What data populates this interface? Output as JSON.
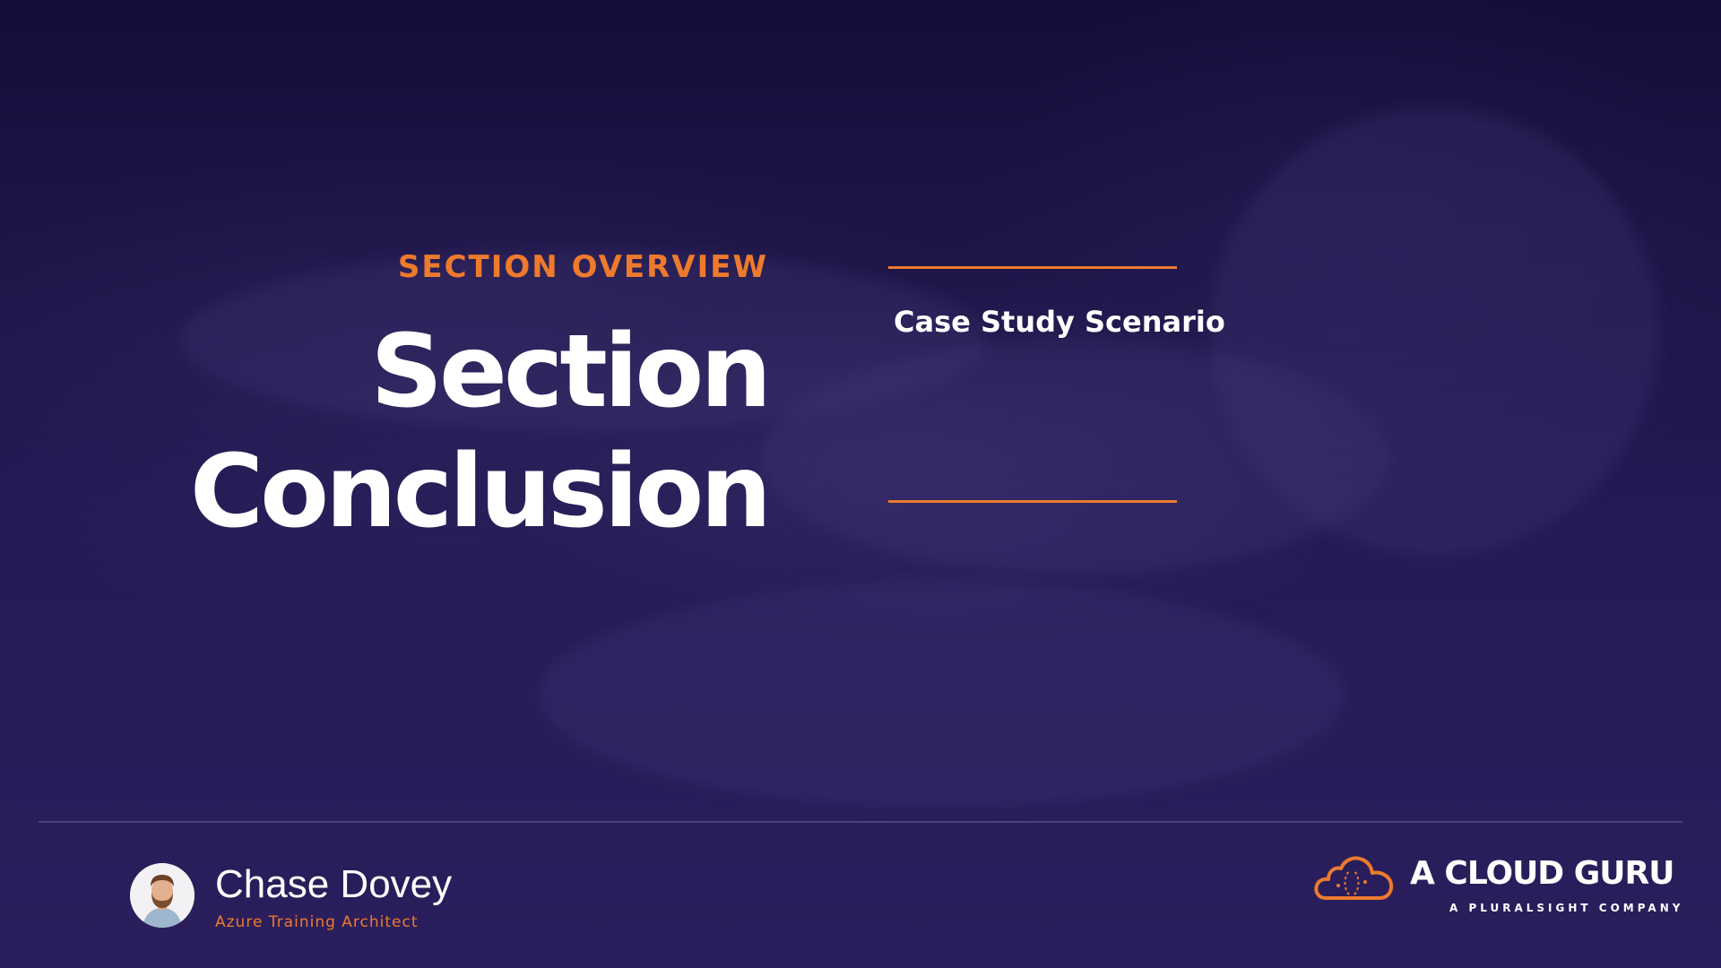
{
  "slide": {
    "section_label": "SECTION OVERVIEW",
    "title_line_1": "Section",
    "title_line_2": "Conclusion",
    "agenda_items": [
      "Case Study Scenario"
    ]
  },
  "presenter": {
    "name": "Chase Dovey",
    "role": "Azure Training Architect"
  },
  "brand": {
    "name": "A CLOUD GURU",
    "tagline": "A PLURALSIGHT COMPANY"
  },
  "colors": {
    "accent": "#ee7a2e",
    "background": "#22184f",
    "text": "#ffffff"
  }
}
